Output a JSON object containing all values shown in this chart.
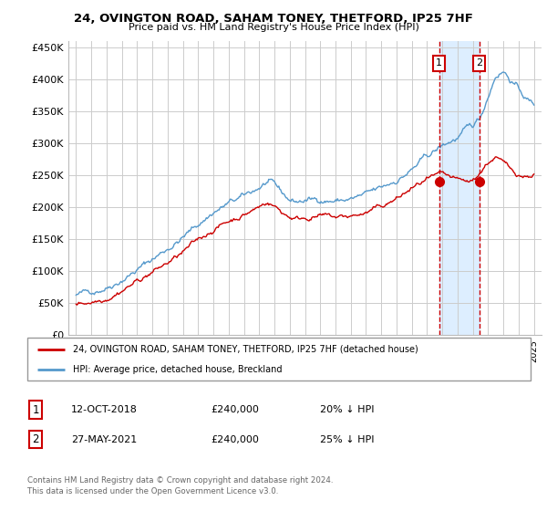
{
  "title": "24, OVINGTON ROAD, SAHAM TONEY, THETFORD, IP25 7HF",
  "subtitle": "Price paid vs. HM Land Registry's House Price Index (HPI)",
  "legend_label_red": "24, OVINGTON ROAD, SAHAM TONEY, THETFORD, IP25 7HF (detached house)",
  "legend_label_blue": "HPI: Average price, detached house, Breckland",
  "footnote": "Contains HM Land Registry data © Crown copyright and database right 2024.\nThis data is licensed under the Open Government Licence v3.0.",
  "transaction1_label": "1",
  "transaction1_date": "12-OCT-2018",
  "transaction1_price": "£240,000",
  "transaction1_hpi": "20% ↓ HPI",
  "transaction2_label": "2",
  "transaction2_date": "27-MAY-2021",
  "transaction2_price": "£240,000",
  "transaction2_hpi": "25% ↓ HPI",
  "vline1_x": 2018.79,
  "vline2_x": 2021.41,
  "ylim_min": 0,
  "ylim_max": 460000,
  "xlim_min": 1994.5,
  "xlim_max": 2025.5,
  "background_color": "#ffffff",
  "plot_bg_color": "#ffffff",
  "grid_color": "#cccccc",
  "red_color": "#cc0000",
  "blue_color": "#5599cc",
  "vline_color": "#cc0000",
  "highlight_bg": "#ddeeff",
  "blue_anchors_x": [
    1995.0,
    1996.0,
    1997.0,
    1998.0,
    1999.0,
    2000.0,
    2001.0,
    2002.0,
    2003.0,
    2004.0,
    2005.0,
    2006.0,
    2007.0,
    2007.5,
    2008.0,
    2008.5,
    2009.0,
    2009.5,
    2010.0,
    2011.0,
    2012.0,
    2013.0,
    2014.0,
    2015.0,
    2016.0,
    2017.0,
    2018.0,
    2019.0,
    2019.5,
    2020.0,
    2020.5,
    2021.0,
    2021.5,
    2022.0,
    2022.5,
    2023.0,
    2023.5,
    2024.0,
    2024.5,
    2025.0
  ],
  "blue_anchors_y": [
    62000,
    68000,
    76000,
    88000,
    102000,
    118000,
    135000,
    152000,
    172000,
    192000,
    205000,
    215000,
    230000,
    238000,
    232000,
    220000,
    210000,
    208000,
    210000,
    212000,
    210000,
    212000,
    218000,
    228000,
    242000,
    258000,
    278000,
    295000,
    302000,
    308000,
    318000,
    325000,
    340000,
    375000,
    408000,
    415000,
    400000,
    385000,
    370000,
    360000
  ],
  "red_anchors_x": [
    1995.0,
    1996.0,
    1997.0,
    1998.0,
    1999.0,
    2000.0,
    2001.0,
    2002.0,
    2003.0,
    2004.0,
    2005.0,
    2006.0,
    2007.0,
    2007.5,
    2008.0,
    2008.5,
    2009.0,
    2009.5,
    2010.0,
    2011.0,
    2012.0,
    2013.0,
    2014.0,
    2015.0,
    2016.0,
    2017.0,
    2018.0,
    2019.0,
    2019.5,
    2020.0,
    2020.5,
    2021.0,
    2021.5,
    2022.0,
    2022.5,
    2023.0,
    2023.5,
    2024.0,
    2024.5,
    2025.0
  ],
  "red_anchors_y": [
    48000,
    52000,
    58000,
    70000,
    84000,
    98000,
    112000,
    128000,
    148000,
    165000,
    178000,
    188000,
    200000,
    208000,
    202000,
    192000,
    185000,
    182000,
    184000,
    186000,
    183000,
    185000,
    190000,
    200000,
    212000,
    228000,
    242000,
    248000,
    244000,
    240000,
    238000,
    240000,
    255000,
    270000,
    278000,
    268000,
    258000,
    252000,
    248000,
    252000
  ]
}
